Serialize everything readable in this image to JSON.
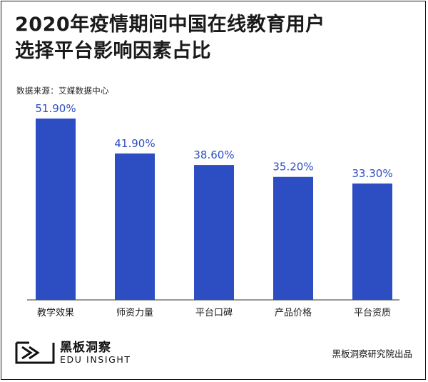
{
  "header": {
    "title_line1": "2020年疫情期间中国在线教育用户",
    "title_line2": "选择平台影响因素占比",
    "source": "数据来源：艾媒数据中心"
  },
  "chart_data": {
    "type": "bar",
    "title": "2020年疫情期间中国在线教育用户选择平台影响因素占比",
    "categories": [
      "教学效果",
      "师资力量",
      "平台口碑",
      "产品价格",
      "平台资质"
    ],
    "values": [
      51.9,
      41.9,
      38.6,
      35.2,
      33.3
    ],
    "value_labels": [
      "51.90%",
      "41.90%",
      "38.60%",
      "35.20%",
      "33.30%"
    ],
    "unit": "%",
    "bar_color": "#2d4ec2",
    "ylim": [
      0,
      51.9
    ],
    "grid": false,
    "legend": "none"
  },
  "footer": {
    "logo_cn": "黑板洞察",
    "logo_en": "EDU INSIGHT",
    "credit": "黑板洞察研究院出品"
  },
  "icons": {
    "logo": "edu-insight-logo-icon"
  }
}
